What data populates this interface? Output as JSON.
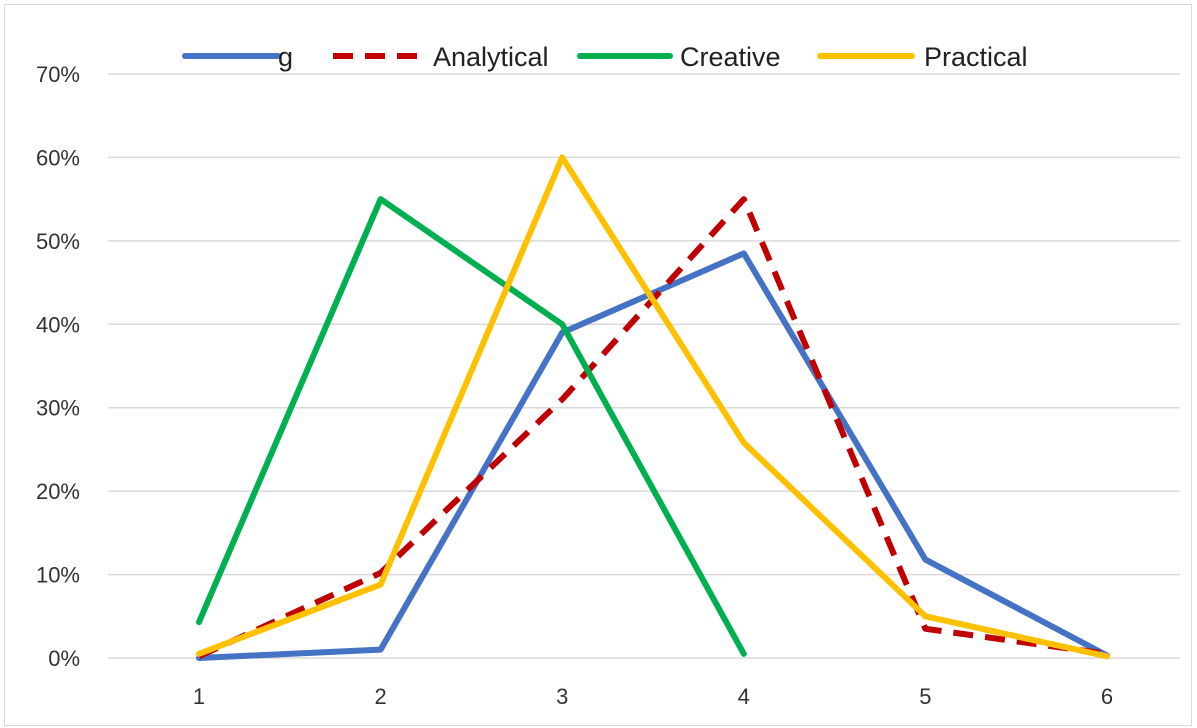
{
  "chart_data": {
    "type": "line",
    "title": "",
    "xlabel": "",
    "ylabel": "",
    "x": [
      1,
      2,
      3,
      4,
      5,
      6
    ],
    "ylim": [
      0,
      70
    ],
    "yticks": [
      "0%",
      "10%",
      "20%",
      "30%",
      "40%",
      "50%",
      "60%",
      "70%"
    ],
    "xticks": [
      "1",
      "2",
      "3",
      "4",
      "5",
      "6"
    ],
    "grid": "horizontal",
    "legend_position": "top",
    "series": [
      {
        "name": "g",
        "values": [
          0,
          1,
          39,
          48.5,
          11.8,
          0.3
        ],
        "color": "#4472c4",
        "dash": "solid"
      },
      {
        "name": "Analytical",
        "values": [
          0.2,
          10.2,
          31,
          55,
          3.5,
          0.5
        ],
        "color": "#c00000",
        "dash": "dashed"
      },
      {
        "name": "Creative",
        "values": [
          4.3,
          55,
          40,
          0.5,
          null,
          null
        ],
        "color": "#00b050",
        "dash": "solid"
      },
      {
        "name": "Practical",
        "values": [
          0.5,
          8.8,
          60,
          25.8,
          5,
          0.2
        ],
        "color": "#ffc000",
        "dash": "solid"
      }
    ]
  }
}
